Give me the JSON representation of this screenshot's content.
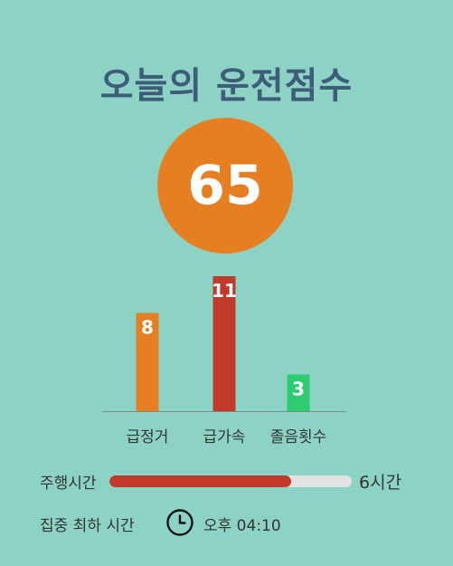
{
  "header": {
    "title": "오늘의 운전점수"
  },
  "score": {
    "value": "65",
    "color": "#e67e22"
  },
  "chart_data": {
    "type": "bar",
    "categories": [
      "급정거",
      "급가속",
      "졸음횟수"
    ],
    "values": [
      8,
      11,
      3
    ],
    "colors": [
      "#e67e22",
      "#c0392b",
      "#2ecc71"
    ],
    "ylim": [
      0,
      11
    ],
    "grid": false,
    "title": "",
    "xlabel": "",
    "ylabel": ""
  },
  "drive": {
    "label": "주행시간",
    "total": "6시간",
    "progress_fraction": 0.75,
    "fill_color": "#c0392b",
    "track_color": "#e3e3e3"
  },
  "focus": {
    "label": "집중 최하 시간",
    "icon": "clock-icon",
    "time": "오후 04:10"
  }
}
